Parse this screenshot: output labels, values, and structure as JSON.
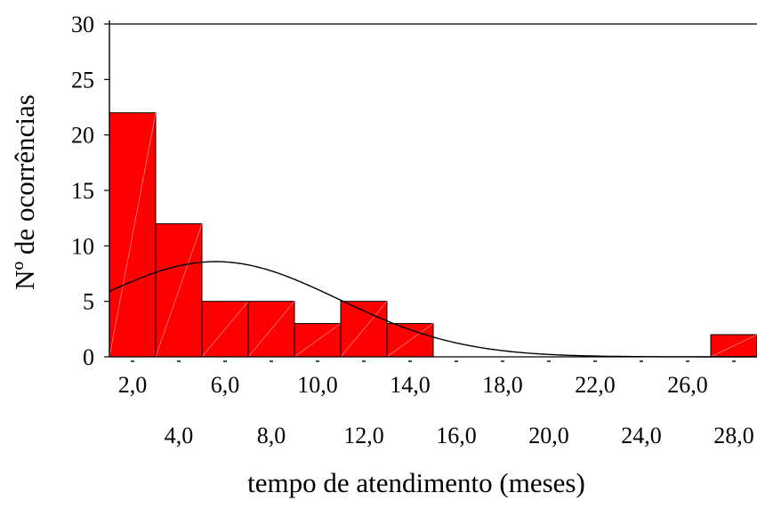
{
  "chart_data": {
    "type": "bar",
    "title": "",
    "xlabel": "tempo de atendimento (meses)",
    "ylabel": "Nº de  ocorrências",
    "ylim": [
      0,
      30
    ],
    "y_ticks": [
      "0",
      "5",
      "10",
      "15",
      "20",
      "25",
      "30"
    ],
    "x_ticks_upper": [
      "2,0",
      "6,0",
      "10,0",
      "14,0",
      "18,0",
      "22,0",
      "26,0"
    ],
    "x_ticks_lower": [
      "4,0",
      "8,0",
      "12,0",
      "16,0",
      "20,0",
      "24,0",
      "28,0"
    ],
    "bin_width": 2.0,
    "bins": [
      {
        "center": 2.0,
        "count": 22
      },
      {
        "center": 4.0,
        "count": 12
      },
      {
        "center": 6.0,
        "count": 5
      },
      {
        "center": 8.0,
        "count": 5
      },
      {
        "center": 10.0,
        "count": 3
      },
      {
        "center": 12.0,
        "count": 5
      },
      {
        "center": 14.0,
        "count": 3
      },
      {
        "center": 16.0,
        "count": 0
      },
      {
        "center": 18.0,
        "count": 0
      },
      {
        "center": 20.0,
        "count": 0
      },
      {
        "center": 22.0,
        "count": 0
      },
      {
        "center": 24.0,
        "count": 0
      },
      {
        "center": 26.0,
        "count": 0
      },
      {
        "center": 28.0,
        "count": 2
      }
    ],
    "normal_curve": {
      "mean": 5.6,
      "sd": 5.3,
      "n": 57
    },
    "bar_color": "#ff0000",
    "grid": false,
    "legend": "none"
  }
}
